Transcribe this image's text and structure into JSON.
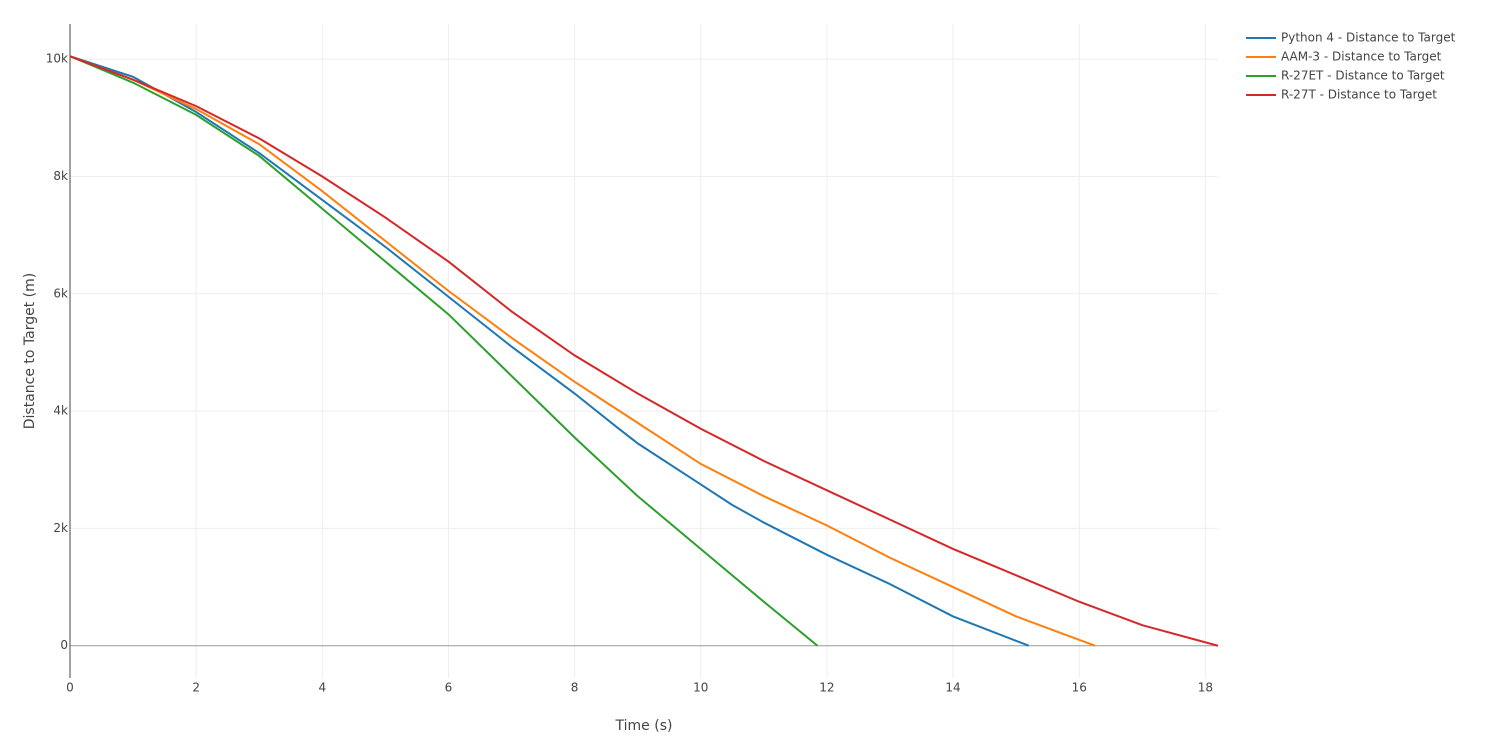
{
  "chart_data": {
    "type": "line",
    "x_label": "Time (s)",
    "y_label": "Distance to Target (m)",
    "xlim": [
      0,
      18.2
    ],
    "ylim": [
      -550,
      10600
    ],
    "xticks": [
      0,
      2,
      4,
      6,
      8,
      10,
      12,
      14,
      16,
      18
    ],
    "yticks": [
      0,
      {
        "value": 2000,
        "label": "2k"
      },
      {
        "value": 4000,
        "label": "4k"
      },
      {
        "value": 6000,
        "label": "6k"
      },
      {
        "value": 8000,
        "label": "8k"
      },
      {
        "value": 10000,
        "label": "10k"
      }
    ],
    "grid": true,
    "legend": "top-right",
    "series": [
      {
        "name": "Python 4 - Distance to Target",
        "color": "#1f77b4",
        "x": [
          0,
          1,
          2,
          3,
          4,
          5,
          6,
          7,
          8,
          8.7,
          9,
          10,
          10.5,
          11,
          12,
          13,
          14,
          15.2
        ],
        "values": [
          10050,
          9700,
          9100,
          8400,
          7600,
          6800,
          5950,
          5100,
          4300,
          3700,
          3450,
          2750,
          2400,
          2100,
          1550,
          1050,
          500,
          0
        ]
      },
      {
        "name": "AAM-3 - Distance to Target",
        "color": "#ff7f0e",
        "x": [
          0,
          1,
          2,
          3,
          4,
          5,
          6,
          7,
          8,
          9,
          10,
          11,
          12,
          13,
          14,
          15,
          16.25
        ],
        "values": [
          10050,
          9650,
          9150,
          8550,
          7750,
          6900,
          6050,
          5250,
          4500,
          3800,
          3100,
          2550,
          2050,
          1500,
          1000,
          500,
          0
        ]
      },
      {
        "name": "R-27ET - Distance to Target",
        "color": "#2ca02c",
        "x": [
          0,
          1,
          2,
          3,
          4,
          5,
          6,
          7,
          8,
          9,
          10,
          11,
          11.85
        ],
        "values": [
          10050,
          9600,
          9050,
          8350,
          7450,
          6550,
          5650,
          4600,
          3550,
          2550,
          1650,
          750,
          0
        ]
      },
      {
        "name": "R-27T - Distance to Target",
        "color": "#d62728",
        "x": [
          0,
          1,
          2,
          3,
          4,
          5,
          6,
          7,
          8,
          9,
          10,
          11,
          12,
          13,
          14,
          15,
          16,
          17,
          18.2
        ],
        "values": [
          10050,
          9650,
          9200,
          8650,
          8000,
          7300,
          6550,
          5700,
          4950,
          4300,
          3700,
          3150,
          2650,
          2150,
          1650,
          1200,
          750,
          350,
          0
        ]
      }
    ]
  }
}
